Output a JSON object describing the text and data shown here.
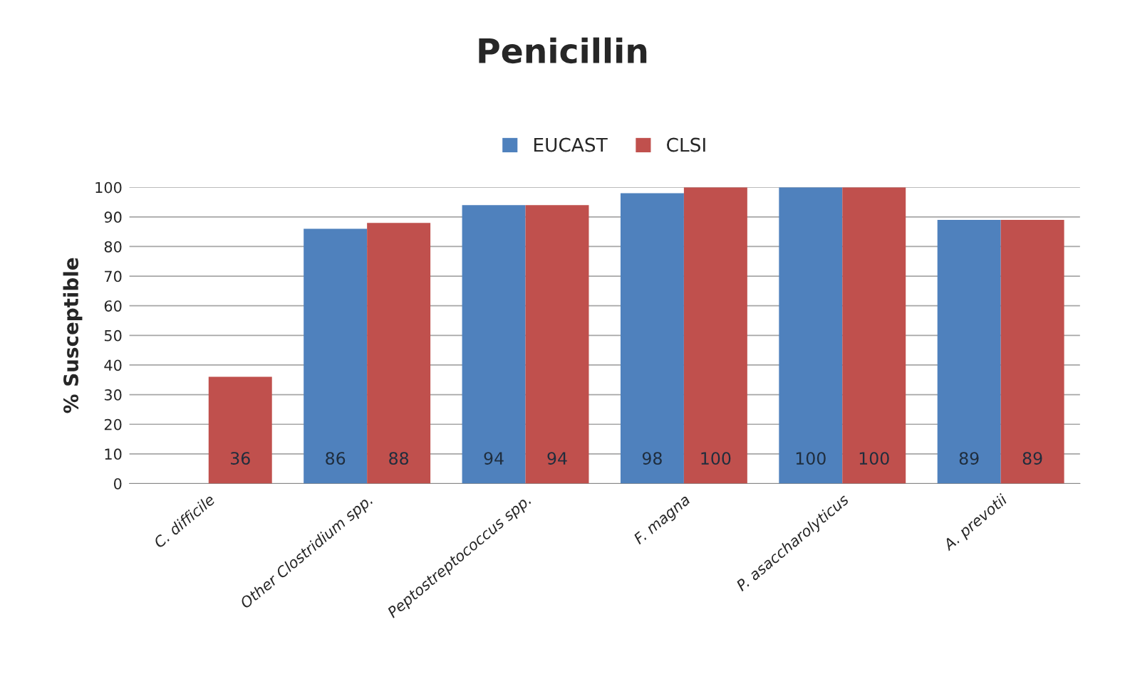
{
  "chart_data": {
    "type": "bar",
    "title": "Penicillin",
    "ylabel": "% Susceptible",
    "categories": [
      "C. difficile",
      "Other Clostridium spp.",
      "Peptostreptococcus spp.",
      "F. magna",
      "P. asaccharolyticus",
      "A. prevotii"
    ],
    "series": [
      {
        "name": "EUCAST",
        "color": "#4f81bd",
        "values": [
          null,
          86,
          94,
          98,
          100,
          89
        ]
      },
      {
        "name": "CLSI",
        "color": "#c0504d",
        "values": [
          36,
          88,
          94,
          100,
          100,
          89
        ]
      }
    ],
    "ylim": [
      0,
      100
    ],
    "yticks": [
      0,
      10,
      20,
      30,
      40,
      50,
      60,
      70,
      80,
      90,
      100
    ],
    "grid": "y",
    "legend": "top",
    "data_labels": true
  }
}
